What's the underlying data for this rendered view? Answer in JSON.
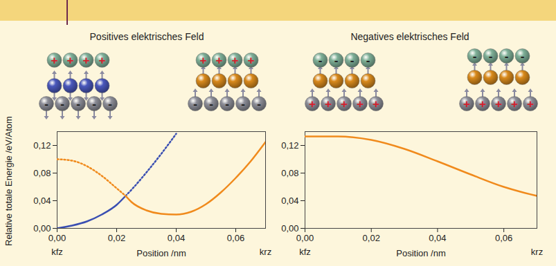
{
  "chart_data": [
    {
      "type": "line",
      "title": "Positives elektrisches Feld",
      "xlabel": "Position /nm",
      "ylabel": "Relative totale Energie /eV/Atom",
      "xlim": [
        0,
        0.07
      ],
      "xticks": [
        {
          "value": 0,
          "label": "0,00"
        },
        {
          "value": 0.02,
          "label": "0,02"
        },
        {
          "value": 0.04,
          "label": "0,04"
        },
        {
          "value": 0.06,
          "label": "0,06"
        }
      ],
      "ylim": [
        0,
        0.14
      ],
      "yticks": [
        {
          "value": 0,
          "label": "0,00"
        },
        {
          "value": 0.04,
          "label": "0,04"
        },
        {
          "value": 0.08,
          "label": "0,08"
        },
        {
          "value": 0.12,
          "label": "0,12"
        }
      ],
      "grid": false,
      "annotations": [
        {
          "text": "kfz",
          "x": 0
        },
        {
          "text": "krz",
          "x": 0.07
        }
      ],
      "series": [
        {
          "color": "#3a4fb2",
          "line_style": "solid",
          "x": [
            0,
            0.005,
            0.01,
            0.015,
            0.02,
            0.023
          ],
          "values": [
            0,
            0.004,
            0.01,
            0.02,
            0.034,
            0.047
          ]
        },
        {
          "color": "#3a4fb2",
          "line_style": "dotted",
          "x": [
            0.023,
            0.025,
            0.03,
            0.035,
            0.04
          ],
          "values": [
            0.047,
            0.056,
            0.081,
            0.108,
            0.137
          ]
        },
        {
          "color": "#f08a1c",
          "line_style": "dotted",
          "x": [
            0,
            0.005,
            0.01,
            0.015,
            0.02,
            0.023
          ],
          "values": [
            0.1,
            0.098,
            0.09,
            0.076,
            0.058,
            0.047
          ]
        },
        {
          "color": "#f08a1c",
          "line_style": "solid",
          "x": [
            0.023,
            0.025,
            0.03,
            0.035,
            0.04,
            0.045,
            0.05,
            0.055,
            0.06,
            0.065,
            0.07
          ],
          "values": [
            0.047,
            0.038,
            0.026,
            0.021,
            0.02,
            0.024,
            0.035,
            0.052,
            0.073,
            0.097,
            0.125
          ]
        }
      ]
    },
    {
      "type": "line",
      "title": "Negatives elektrisches Feld",
      "xlabel": "Position /nm",
      "xlim": [
        0,
        0.07
      ],
      "xticks": [
        {
          "value": 0,
          "label": "0,00"
        },
        {
          "value": 0.02,
          "label": "0,02"
        },
        {
          "value": 0.04,
          "label": "0,04"
        },
        {
          "value": 0.06,
          "label": "0,06"
        }
      ],
      "ylim": [
        0,
        0.14
      ],
      "yticks": [
        {
          "value": 0,
          "label": "0,00"
        },
        {
          "value": 0.04,
          "label": "0,04"
        },
        {
          "value": 0.08,
          "label": "0,08"
        },
        {
          "value": 0.12,
          "label": "0,12"
        }
      ],
      "grid": false,
      "annotations": [
        {
          "text": "kfz",
          "x": 0
        },
        {
          "text": "krz",
          "x": 0.07
        }
      ],
      "series": [
        {
          "color": "#f08a1c",
          "line_style": "solid",
          "x": [
            0,
            0.01,
            0.02,
            0.03,
            0.04,
            0.05,
            0.06,
            0.065,
            0.07
          ],
          "values": [
            0.133,
            0.133,
            0.128,
            0.115,
            0.097,
            0.078,
            0.06,
            0.053,
            0.047
          ]
        }
      ]
    }
  ],
  "diagrams": [
    {
      "top": {
        "charge": "+",
        "count": 4
      },
      "film": {
        "color": "#4a58bc",
        "count": 4
      },
      "substrate": {
        "charge": "-",
        "count": 5
      }
    },
    {
      "top": {
        "charge": "+",
        "count": 4
      },
      "film": {
        "color": "#d98a1c",
        "count": 4
      },
      "substrate": {
        "charge": "-",
        "count": 5
      }
    },
    {
      "top": {
        "charge": "-",
        "count": 4
      },
      "film": {
        "color": "#d98a1c",
        "count": 4
      },
      "substrate": {
        "charge": "+",
        "count": 5
      }
    },
    {
      "top": {
        "charge": "-",
        "count": 4
      },
      "film": {
        "color": "#d98a1c",
        "count": 4
      },
      "substrate": {
        "charge": "+",
        "count": 5
      }
    }
  ]
}
